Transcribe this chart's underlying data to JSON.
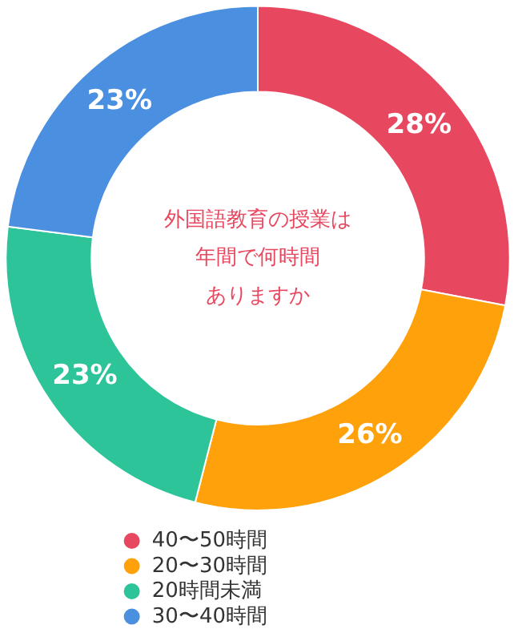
{
  "chart_data": {
    "type": "donut",
    "annotations": [
      "外国語教育の授業は",
      "年間で何時間",
      "ありますか"
    ],
    "categories": [
      "40〜50時間",
      "20〜30時間",
      "20時間未満",
      "30〜40時間"
    ],
    "values": [
      28,
      26,
      23,
      23
    ],
    "colors": [
      "#e8485f",
      "#ffa10a",
      "#2ec49a",
      "#4a8fe0"
    ],
    "value_labels": [
      "28%",
      "26%",
      "23%",
      "23%"
    ],
    "legend": "bottom"
  }
}
